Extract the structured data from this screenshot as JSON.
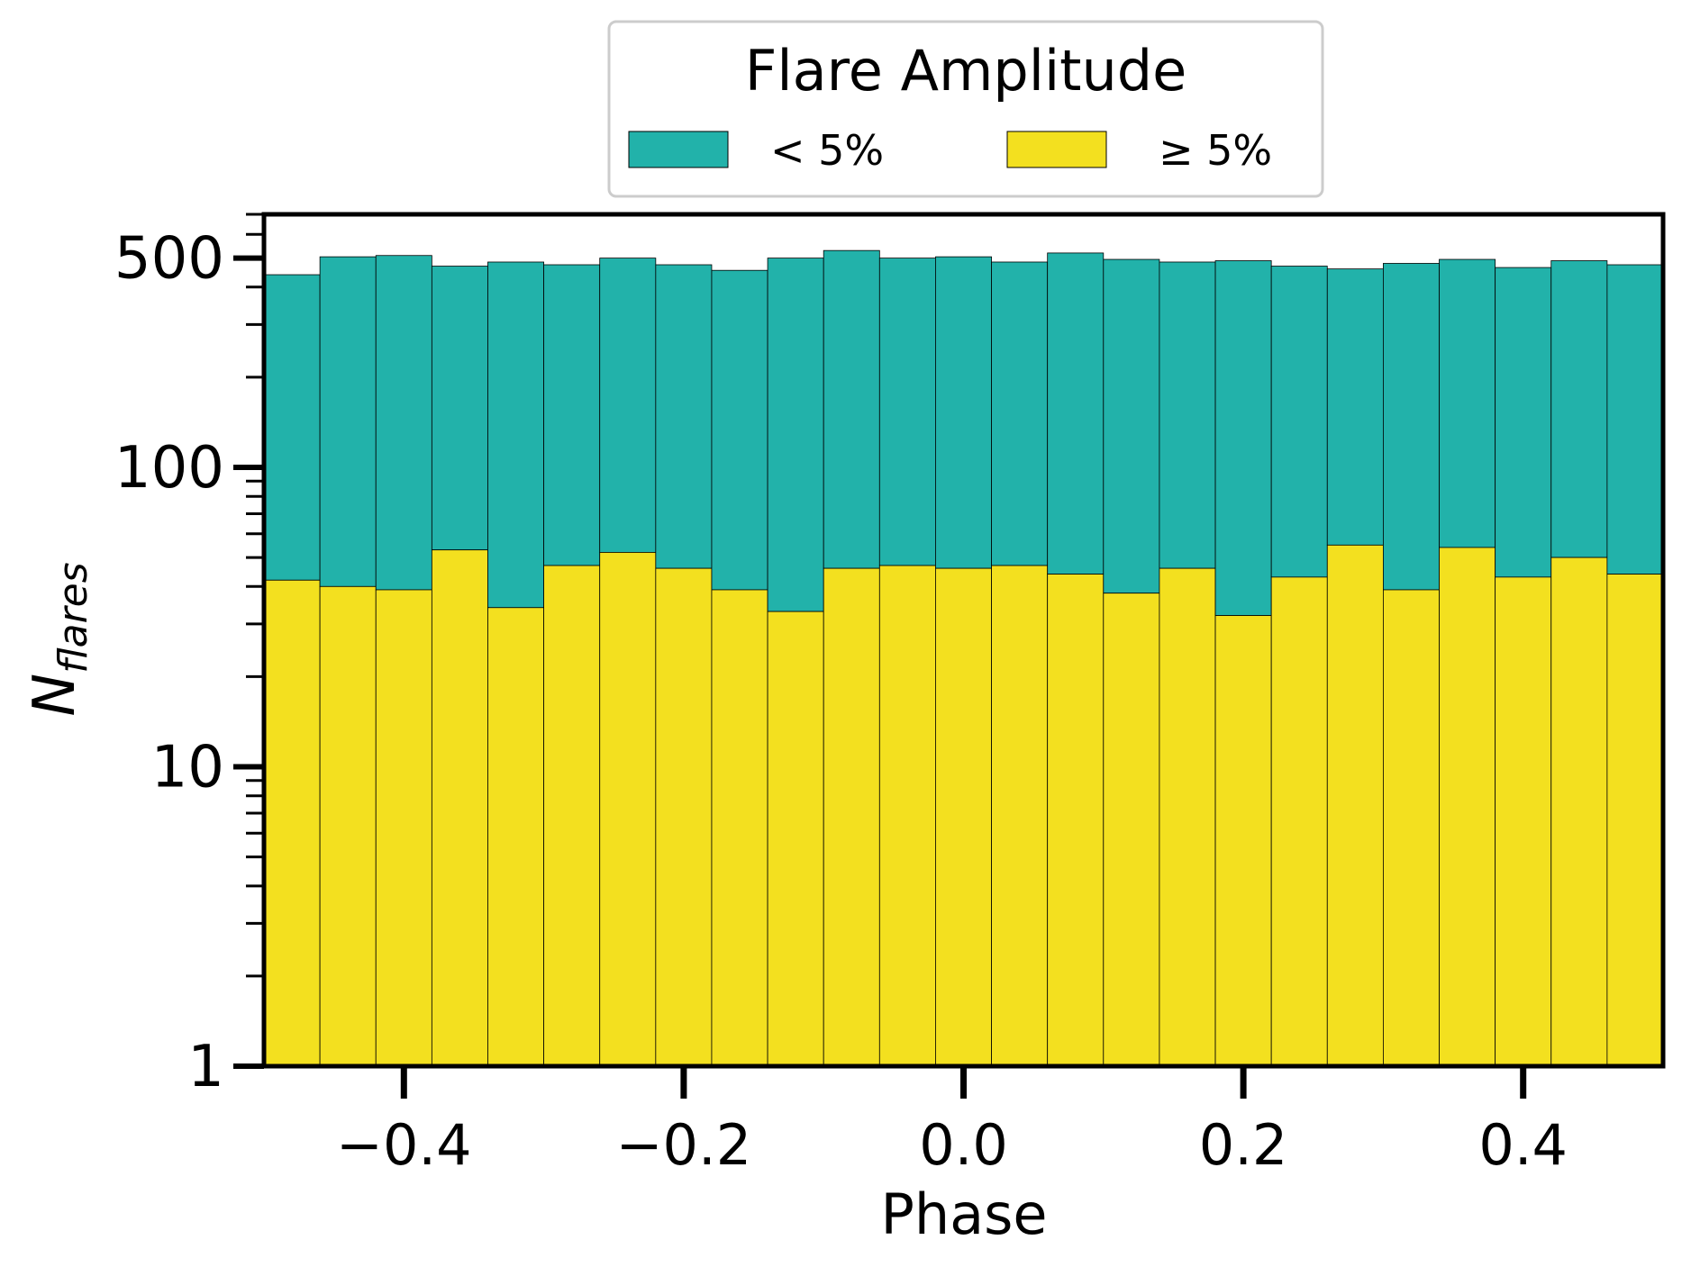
{
  "chart_data": {
    "type": "bar",
    "stacked": true,
    "y_scale": "log",
    "xlabel": "Phase",
    "ylabel_base": "N",
    "ylabel_subscript": "flares",
    "xlim": [
      -0.5,
      0.5
    ],
    "ylim": [
      1,
      700
    ],
    "x_ticks": [
      -0.4,
      -0.2,
      0.0,
      0.2,
      0.4
    ],
    "x_tick_labels": [
      "−0.4",
      "−0.2",
      "0.0",
      "0.2",
      "0.4"
    ],
    "y_ticks": [
      1,
      10,
      100,
      500
    ],
    "y_tick_labels": [
      "1",
      "10",
      "100",
      "500"
    ],
    "legend": {
      "title": "Flare Amplitude",
      "placement": "top-center",
      "entries": [
        {
          "label": "< 5%",
          "color": "#22b2aa"
        },
        {
          "label": "≥ 5%",
          "color": "#f3e01f"
        }
      ]
    },
    "bin_edges": [
      -0.5,
      -0.46,
      -0.42,
      -0.38,
      -0.34,
      -0.3,
      -0.26,
      -0.22,
      -0.18,
      -0.14,
      -0.1,
      -0.06,
      -0.02,
      0.02,
      0.06,
      0.1,
      0.14,
      0.18,
      0.22,
      0.26,
      0.3,
      0.34,
      0.38,
      0.42,
      0.46,
      0.5
    ],
    "series": [
      {
        "name": "≥ 5%",
        "color": "#f3e01f",
        "totals": [
          42,
          40,
          39,
          53,
          34,
          47,
          52,
          46,
          39,
          33,
          46,
          47,
          46,
          47,
          44,
          38,
          46,
          32,
          43,
          55,
          39,
          54,
          43,
          50,
          44
        ]
      },
      {
        "name": "< 5%",
        "color": "#22b2aa",
        "totals": [
          440,
          505,
          510,
          470,
          485,
          475,
          500,
          475,
          455,
          500,
          530,
          500,
          505,
          485,
          520,
          495,
          485,
          490,
          470,
          460,
          480,
          495,
          465,
          490,
          475
        ]
      }
    ]
  }
}
